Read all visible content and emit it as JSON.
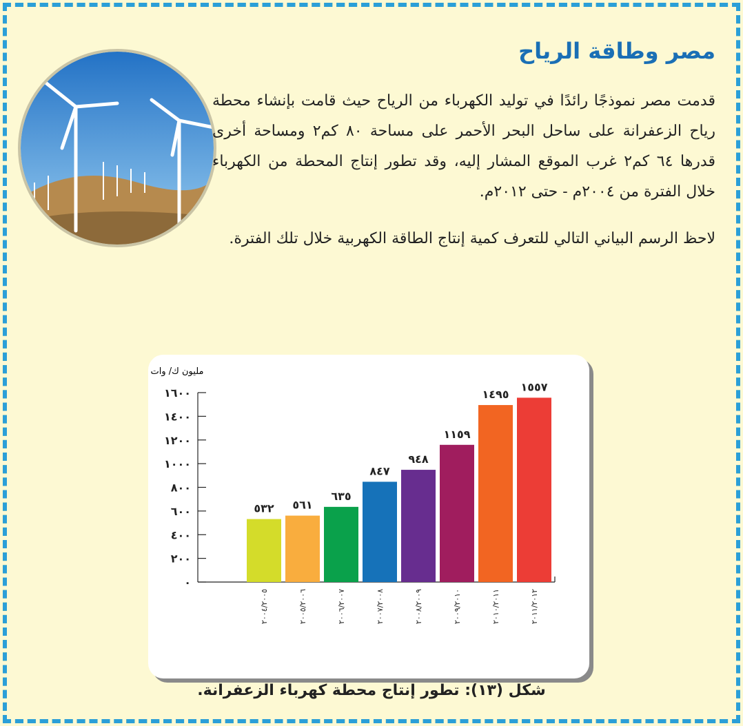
{
  "header": {
    "title": "مصر وطاقة الرياح"
  },
  "paragraphs": [
    "قدمت مصر نموذجًا رائدًا في توليد الكهرباء من الرياح حيث قامت بإنشاء محطة رياح الزعفرانة على ساحل البحر الأحمر على مساحة ٨٠ كم٢ ومساحة أخرى قدرها ٦٤ كم٢ غرب الموقع المشار إليه، وقد تطور إنتاج المحطة من الكهرباء خلال الفترة من ٢٠٠٤م - حتى ٢٠١٢م.",
    "لاحظ الرسم البياني التالي للتعرف كمية إنتاج الطاقة الكهربية خلال تلك الفترة."
  ],
  "chart_data": {
    "type": "bar",
    "y_label": "مليون ك/ وات",
    "categories": [
      "٢٠٠٤/٢٠٠٥",
      "٢٠٠٥/٢٠٠٦",
      "٢٠٠٦/٢٠٠٧",
      "٢٠٠٧/٢٠٠٨",
      "٢٠٠٨/٢٠٠٩",
      "٢٠٠٩/٢٠١٠",
      "٢٠١٠/٢٠١١",
      "٢٠١١/٢٠١٢"
    ],
    "values": [
      532,
      561,
      635,
      847,
      948,
      1159,
      1495,
      1557
    ],
    "value_labels": [
      "٥٣٢",
      "٥٦١",
      "٦٣٥",
      "٨٤٧",
      "٩٤٨",
      "١١٥٩",
      "١٤٩٥",
      "١٥٥٧"
    ],
    "colors": [
      "#d4dc2a",
      "#f9ad3e",
      "#0aa14b",
      "#1672b9",
      "#672d8f",
      "#a01d5e",
      "#f26522",
      "#ec3d36"
    ],
    "ylim": [
      0,
      1600
    ],
    "yticks": [
      {
        "value": 0,
        "label": "٠"
      },
      {
        "value": 200,
        "label": "٢٠٠"
      },
      {
        "value": 400,
        "label": "٤٠٠"
      },
      {
        "value": 600,
        "label": "٦٠٠"
      },
      {
        "value": 800,
        "label": "٨٠٠"
      },
      {
        "value": 1000,
        "label": "١٠٠٠"
      },
      {
        "value": 1200,
        "label": "١٢٠٠"
      },
      {
        "value": 1400,
        "label": "١٤٠٠"
      },
      {
        "value": 1600,
        "label": "١٦٠٠"
      }
    ]
  },
  "caption": "شكل (١٣): تطور إنتاج محطة كهرباء الزعفرانة."
}
